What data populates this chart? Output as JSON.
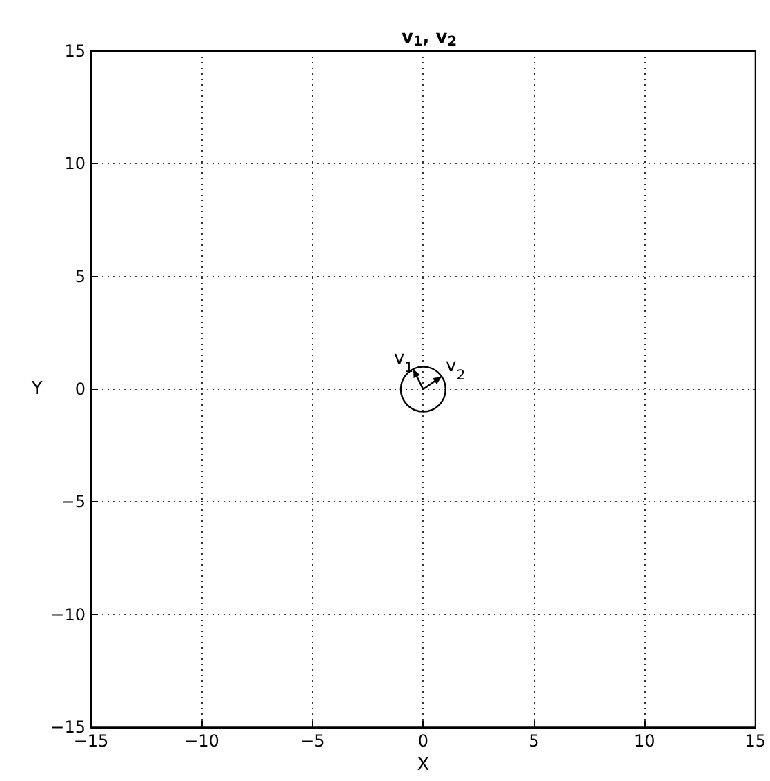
{
  "chart_data": {
    "type": "line",
    "title": "v$_{1}$, v$_{2}$",
    "xlabel": "X",
    "ylabel": "Y",
    "xlim": [
      -15,
      15
    ],
    "ylim": [
      -15,
      15
    ],
    "xticks": [
      -15,
      -10,
      -5,
      0,
      5,
      10,
      15
    ],
    "yticks": [
      -15,
      -10,
      -5,
      0,
      5,
      10,
      15
    ],
    "grid": true,
    "line_style": "solid",
    "series": [
      {
        "color": "#000000",
        "x": [
          0,
          -0.45
        ],
        "values": [
          0,
          0.89
        ]
      },
      {
        "color": "#000000",
        "x": [
          0,
          0.83
        ],
        "values": [
          0,
          0.56
        ]
      }
    ],
    "annotations": [
      "v$_{1}$",
      "v$_{2}$"
    ]
  }
}
